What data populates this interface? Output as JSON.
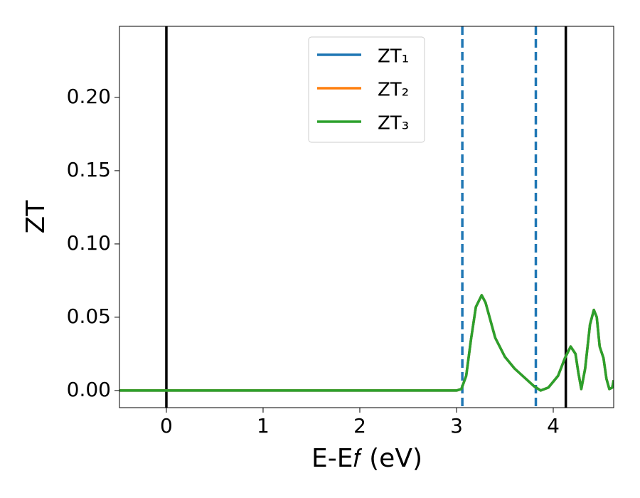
{
  "chart_data": {
    "type": "line",
    "xlabel": "E-E𝑓 (eV)",
    "ylabel": "ZT",
    "xlim": [
      -0.485,
      4.625
    ],
    "ylim": [
      -0.0117,
      0.2485
    ],
    "xticks": [
      0,
      1,
      2,
      3,
      4
    ],
    "yticks": [
      {
        "value": 0,
        "label": "0.00"
      },
      0.05,
      {
        "value": 0.1,
        "label": "0.10"
      },
      0.15,
      {
        "value": 0.2,
        "label": "0.20"
      }
    ],
    "grid": false,
    "legend": "upper center",
    "vlines": [
      {
        "x": 0,
        "color": "#000000",
        "style": "solid"
      },
      {
        "x": 4.13,
        "color": "#000000",
        "style": "solid"
      },
      {
        "x": 3.06,
        "color": "#1f77b4",
        "style": "dashed"
      },
      {
        "x": 3.82,
        "color": "#1f77b4",
        "style": "dashed"
      }
    ],
    "x": [
      -0.5,
      0,
      1,
      2,
      3,
      3.05,
      3.1,
      3.15,
      3.2,
      3.26,
      3.3,
      3.35,
      3.4,
      3.5,
      3.6,
      3.7,
      3.8,
      3.87,
      3.95,
      4.05,
      4.12,
      4.18,
      4.23,
      4.26,
      4.29,
      4.33,
      4.38,
      4.42,
      4.45,
      4.48,
      4.52,
      4.55,
      4.58,
      4.61,
      4.625
    ],
    "series": [
      {
        "name": "ZT₁",
        "color": "#1f77b4",
        "values": [
          0,
          0,
          0,
          0,
          0,
          0.001,
          0.01,
          0.035,
          0.057,
          0.065,
          0.06,
          0.048,
          0.036,
          0.023,
          0.015,
          0.009,
          0.003,
          0,
          0.002,
          0.01,
          0.022,
          0.03,
          0.025,
          0.012,
          0.001,
          0.015,
          0.045,
          0.055,
          0.05,
          0.03,
          0.022,
          0.008,
          0.001,
          0.002,
          0.007
        ]
      },
      {
        "name": "ZT₂",
        "color": "#ff7f0e",
        "values": [
          0,
          0,
          0,
          0,
          0,
          0.001,
          0.01,
          0.035,
          0.057,
          0.065,
          0.06,
          0.048,
          0.036,
          0.023,
          0.015,
          0.009,
          0.003,
          0,
          0.002,
          0.01,
          0.022,
          0.03,
          0.025,
          0.012,
          0.001,
          0.015,
          0.045,
          0.055,
          0.05,
          0.03,
          0.022,
          0.008,
          0.001,
          0.002,
          0.007
        ]
      },
      {
        "name": "ZT₃",
        "color": "#2ca02c",
        "values": [
          0,
          0,
          0,
          0,
          0,
          0.001,
          0.01,
          0.035,
          0.057,
          0.065,
          0.06,
          0.048,
          0.036,
          0.023,
          0.015,
          0.009,
          0.003,
          0,
          0.002,
          0.01,
          0.022,
          0.03,
          0.025,
          0.012,
          0.001,
          0.015,
          0.045,
          0.055,
          0.05,
          0.03,
          0.022,
          0.008,
          0.001,
          0.002,
          0.007
        ]
      }
    ]
  }
}
